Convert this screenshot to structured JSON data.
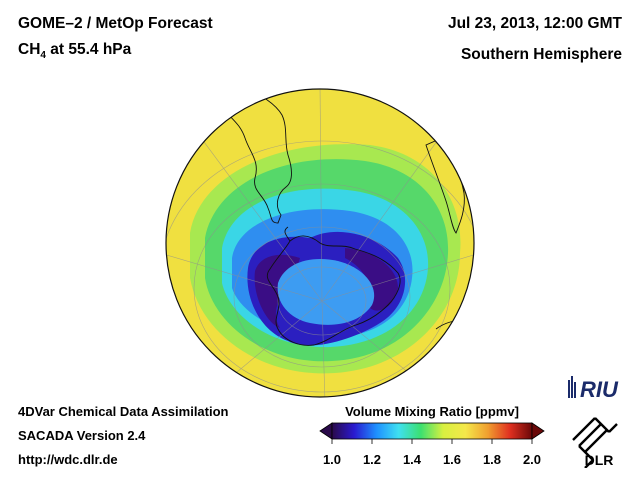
{
  "header": {
    "title_prefix": "GOME–2 / MetOp Forecast",
    "species_main": "CH",
    "species_sub": "4",
    "species_rest": " at 55.4 hPa",
    "date": "Jul 23, 2013, 12:00 GMT",
    "region": "Southern Hemisphere"
  },
  "footer": {
    "line1": "4DVar Chemical Data Assimilation",
    "line2": "SACADA Version 2.4",
    "line3": "http://wdc.dlr.de"
  },
  "colorbar": {
    "title": "Volume Mixing Ratio [ppmv]",
    "ticks": [
      "1.0",
      "1.2",
      "1.4",
      "1.6",
      "1.8",
      "2.0"
    ],
    "min": 1.0,
    "max": 2.0,
    "colors": [
      "#2a0a4a",
      "#2a1ad0",
      "#1e90ff",
      "#3fe0f0",
      "#3ce070",
      "#d8f040",
      "#f4e84a",
      "#f0a030",
      "#e03020",
      "#6a0808"
    ]
  },
  "map": {
    "projection": "orthographic",
    "hemisphere": "south",
    "field_colors": {
      "background": "#f0e040",
      "green": "#56d86a",
      "light_green": "#a8e850",
      "cyan": "#3ad6e6",
      "blue": "#2f8ef0",
      "deep_blue": "#2b1fc0",
      "indigo": "#3a0d85"
    }
  },
  "logos": {
    "riu_text": "RIU",
    "dlr_text": "DLR"
  }
}
